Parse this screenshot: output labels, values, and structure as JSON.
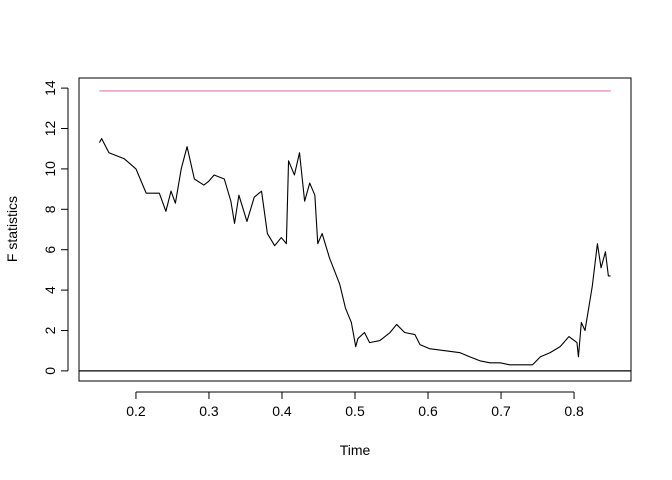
{
  "chart_data": {
    "type": "line",
    "x_label": "Time",
    "y_label": "F statistics",
    "x": [
      0.15,
      0.153,
      0.163,
      0.184,
      0.2,
      0.214,
      0.232,
      0.241,
      0.248,
      0.254,
      0.262,
      0.27,
      0.28,
      0.293,
      0.3,
      0.307,
      0.321,
      0.33,
      0.335,
      0.341,
      0.352,
      0.362,
      0.372,
      0.38,
      0.39,
      0.399,
      0.406,
      0.409,
      0.417,
      0.424,
      0.431,
      0.438,
      0.445,
      0.449,
      0.455,
      0.465,
      0.479,
      0.487,
      0.495,
      0.501,
      0.504,
      0.513,
      0.52,
      0.534,
      0.548,
      0.557,
      0.568,
      0.582,
      0.589,
      0.602,
      0.623,
      0.644,
      0.657,
      0.671,
      0.685,
      0.699,
      0.712,
      0.733,
      0.743,
      0.754,
      0.767,
      0.781,
      0.793,
      0.804,
      0.806,
      0.81,
      0.815,
      0.825,
      0.832,
      0.837,
      0.843,
      0.847,
      0.85
    ],
    "series": [
      {
        "color": "#000000",
        "values": [
          11.3,
          11.5,
          10.8,
          10.5,
          10.0,
          8.8,
          8.8,
          7.9,
          8.9,
          8.3,
          10.0,
          11.1,
          9.5,
          9.2,
          9.4,
          9.7,
          9.5,
          8.4,
          7.3,
          8.7,
          7.4,
          8.6,
          8.9,
          6.8,
          6.2,
          6.6,
          6.3,
          10.4,
          9.7,
          10.8,
          8.4,
          9.3,
          8.7,
          6.3,
          6.8,
          5.6,
          4.3,
          3.1,
          2.4,
          1.2,
          1.6,
          1.9,
          1.4,
          1.5,
          1.9,
          2.3,
          1.9,
          1.8,
          1.3,
          1.1,
          1.0,
          0.9,
          0.7,
          0.5,
          0.4,
          0.4,
          0.3,
          0.3,
          0.3,
          0.7,
          0.9,
          1.2,
          1.7,
          1.4,
          0.7,
          2.4,
          2.0,
          4.2,
          6.3,
          5.1,
          5.9,
          4.7,
          4.7
        ]
      }
    ],
    "hlines": [
      {
        "value": 13.86,
        "color": "#e88fbf",
        "xlim": [
          0.15,
          0.85
        ]
      },
      {
        "value": 0,
        "color": "#000000"
      }
    ],
    "xlim": [
      0.122,
      0.878
    ],
    "xticks": [
      0.2,
      0.3,
      0.4,
      0.5,
      0.6,
      0.7,
      0.8
    ],
    "ylim": [
      -0.5,
      14.5
    ],
    "yticks": [
      0,
      2,
      4,
      6,
      8,
      10,
      12,
      14
    ]
  }
}
